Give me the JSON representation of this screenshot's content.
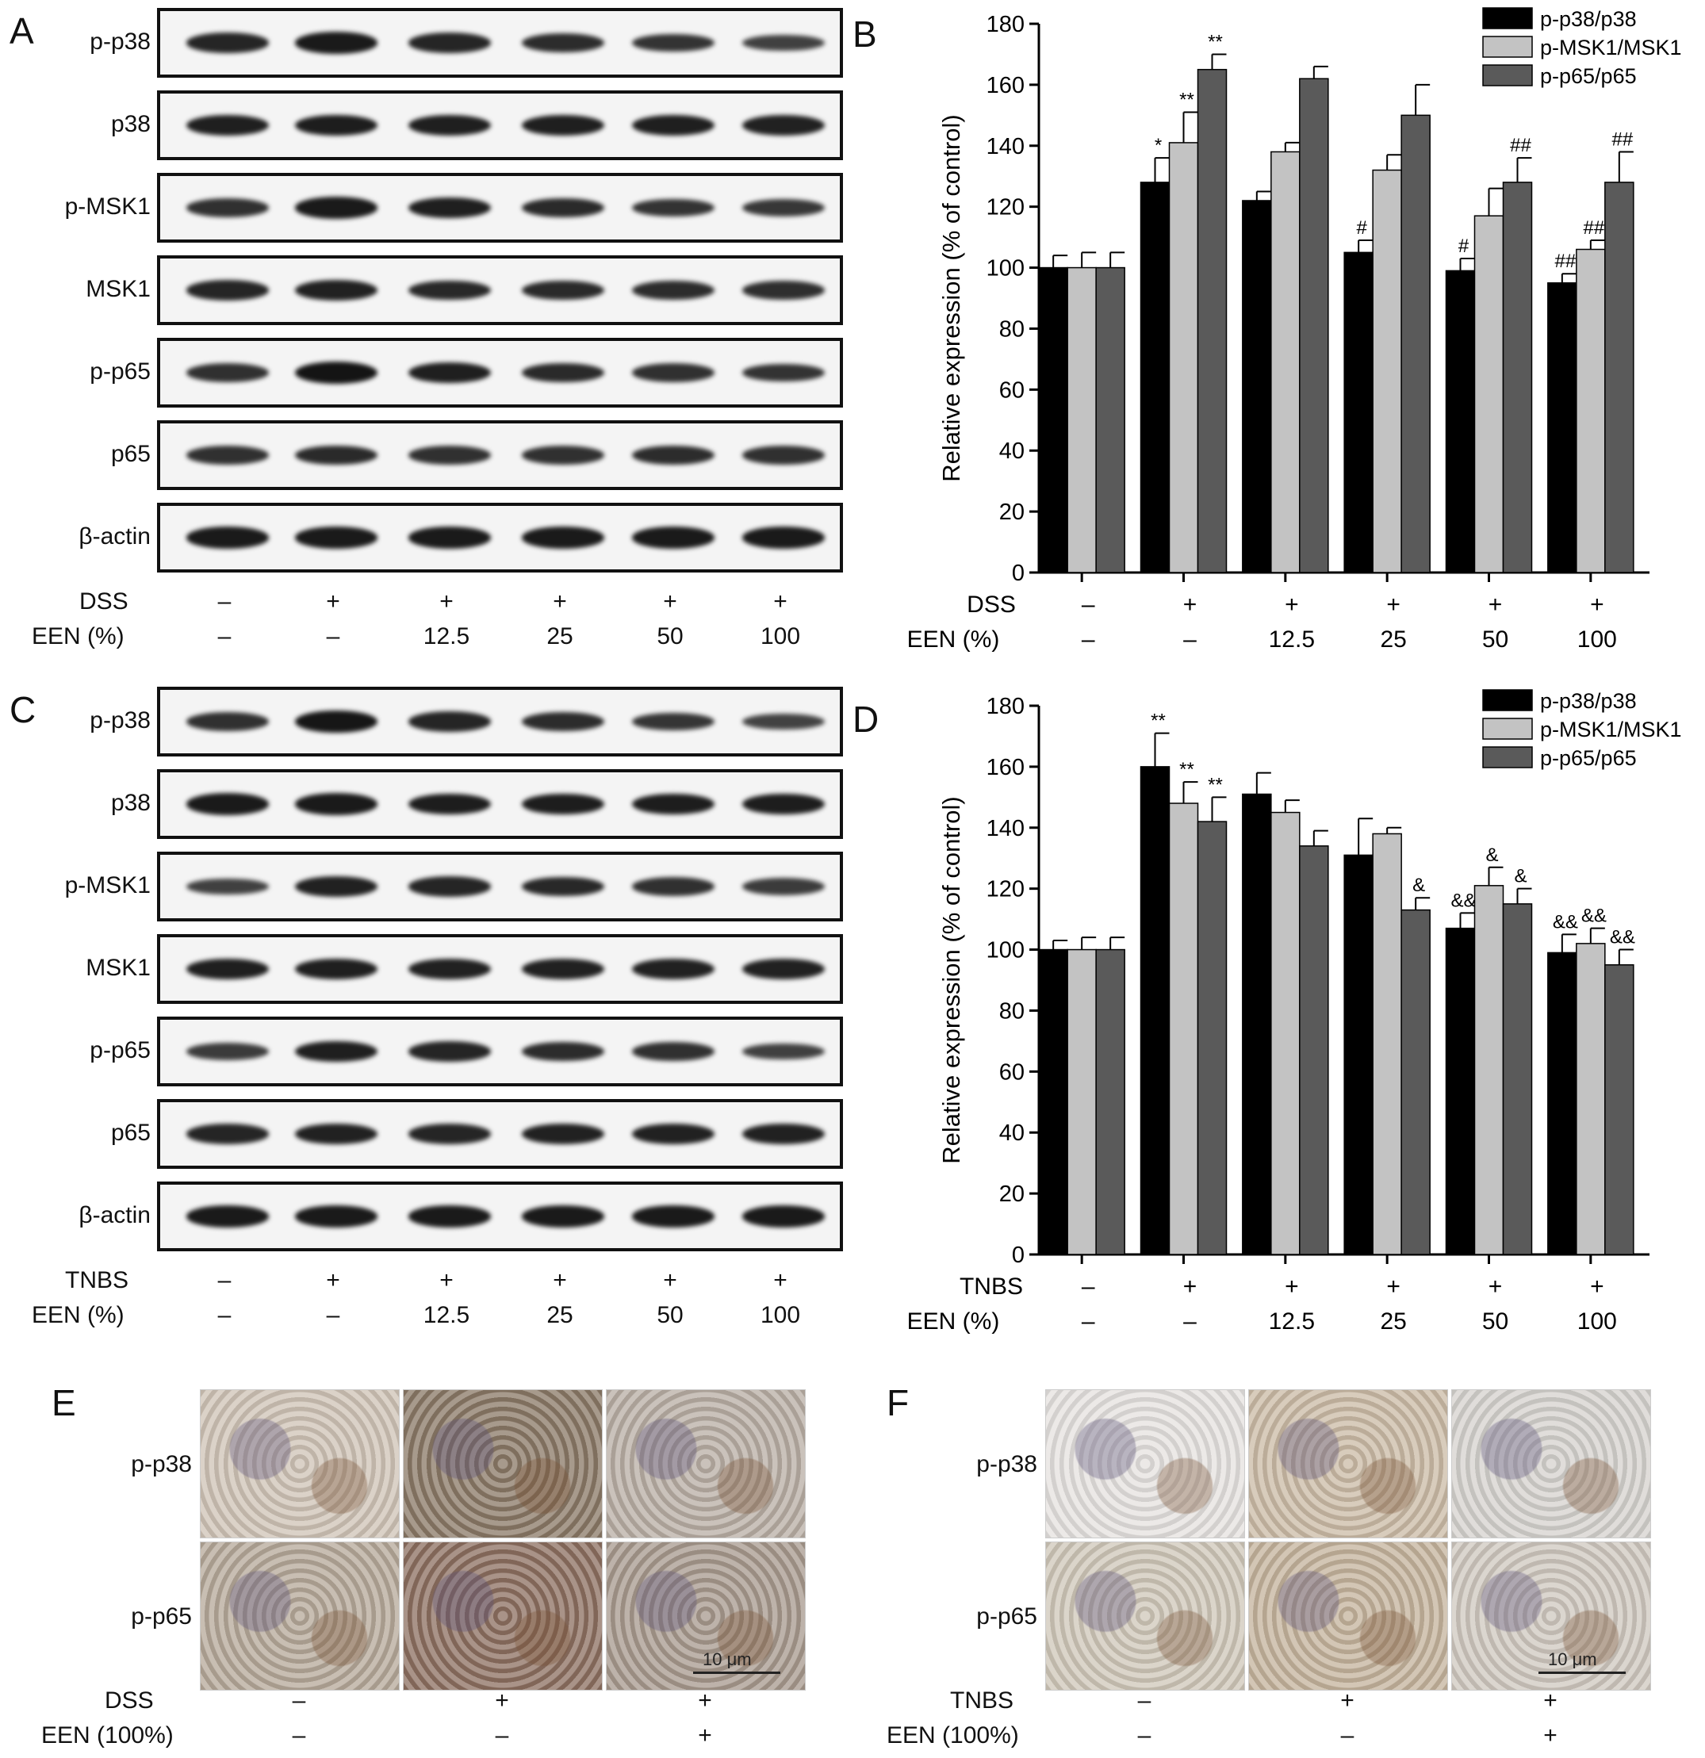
{
  "panels": {
    "A": "A",
    "B": "B",
    "C": "C",
    "D": "D",
    "E": "E",
    "F": "F"
  },
  "blot_labels": [
    "p-p38",
    "p38",
    "p-MSK1",
    "MSK1",
    "p-p65",
    "p65",
    "β-actin"
  ],
  "blot_A_intensity": [
    [
      0.85,
      0.95,
      0.85,
      0.78,
      0.72,
      0.6
    ],
    [
      0.9,
      0.92,
      0.9,
      0.9,
      0.9,
      0.88
    ],
    [
      0.75,
      0.95,
      0.9,
      0.8,
      0.72,
      0.68
    ],
    [
      0.85,
      0.88,
      0.82,
      0.8,
      0.78,
      0.76
    ],
    [
      0.75,
      1.0,
      0.9,
      0.8,
      0.75,
      0.72
    ],
    [
      0.75,
      0.8,
      0.75,
      0.75,
      0.78,
      0.75
    ],
    [
      0.95,
      0.95,
      0.95,
      0.95,
      0.95,
      0.95
    ]
  ],
  "blot_C_intensity": [
    [
      0.75,
      0.98,
      0.85,
      0.78,
      0.7,
      0.58
    ],
    [
      0.95,
      0.95,
      0.92,
      0.92,
      0.92,
      0.92
    ],
    [
      0.6,
      0.88,
      0.85,
      0.82,
      0.75,
      0.65
    ],
    [
      0.9,
      0.9,
      0.88,
      0.88,
      0.88,
      0.88
    ],
    [
      0.65,
      0.9,
      0.85,
      0.78,
      0.75,
      0.6
    ],
    [
      0.85,
      0.88,
      0.85,
      0.88,
      0.88,
      0.88
    ],
    [
      0.95,
      0.95,
      0.95,
      0.95,
      0.95,
      0.95
    ]
  ],
  "conditions_AB": {
    "row1_label": "DSS",
    "row1": [
      "–",
      "+",
      "+",
      "+",
      "+",
      "+"
    ],
    "row2_label": "EEN (%)",
    "row2": [
      "–",
      "–",
      "12.5",
      "25",
      "50",
      "100"
    ]
  },
  "conditions_CD": {
    "row1_label": "TNBS",
    "row1": [
      "–",
      "+",
      "+",
      "+",
      "+",
      "+"
    ],
    "row2_label": "EEN (%)",
    "row2": [
      "–",
      "–",
      "12.5",
      "25",
      "50",
      "100"
    ]
  },
  "chart_data": [
    {
      "type": "bar",
      "panel": "B",
      "ylabel": "Relative expression (% of control)",
      "ylim": [
        0,
        180
      ],
      "yticks": [
        0,
        20,
        40,
        60,
        80,
        100,
        120,
        140,
        160,
        180
      ],
      "legend": "top-right",
      "series": [
        {
          "name": "p-p38/p38",
          "color": "#000000",
          "values": [
            100,
            128,
            122,
            105,
            99,
            95
          ],
          "errors": [
            4,
            8,
            3,
            4,
            4,
            3
          ],
          "annotations": [
            "",
            "*",
            "",
            "#",
            "#",
            "##"
          ]
        },
        {
          "name": "p-MSK1/MSK1",
          "color": "#c3c3c3",
          "values": [
            100,
            141,
            138,
            132,
            117,
            106
          ],
          "errors": [
            5,
            10,
            3,
            5,
            9,
            3
          ],
          "annotations": [
            "",
            "**",
            "",
            "",
            "",
            "##"
          ]
        },
        {
          "name": "p-p65/p65",
          "color": "#5a5a5a",
          "values": [
            100,
            165,
            162,
            150,
            128,
            128
          ],
          "errors": [
            5,
            5,
            4,
            10,
            8,
            10
          ],
          "annotations": [
            "",
            "**",
            "",
            "",
            "##",
            "##"
          ]
        }
      ]
    },
    {
      "type": "bar",
      "panel": "D",
      "ylabel": "Relative expression (% of control)",
      "ylim": [
        0,
        180
      ],
      "yticks": [
        0,
        20,
        40,
        60,
        80,
        100,
        120,
        140,
        160,
        180
      ],
      "legend": "top-right",
      "series": [
        {
          "name": "p-p38/p38",
          "color": "#000000",
          "values": [
            100,
            160,
            151,
            131,
            107,
            99
          ],
          "errors": [
            3,
            11,
            7,
            12,
            5,
            6
          ],
          "annotations": [
            "",
            "**",
            "",
            "",
            "&&",
            "&&"
          ]
        },
        {
          "name": "p-MSK1/MSK1",
          "color": "#c3c3c3",
          "values": [
            100,
            148,
            145,
            138,
            121,
            102
          ],
          "errors": [
            4,
            7,
            4,
            2,
            6,
            5
          ],
          "annotations": [
            "",
            "**",
            "",
            "",
            "&",
            "&&"
          ]
        },
        {
          "name": "p-p65/p65",
          "color": "#5a5a5a",
          "values": [
            100,
            142,
            134,
            113,
            115,
            95
          ],
          "errors": [
            4,
            8,
            5,
            4,
            5,
            5
          ],
          "annotations": [
            "",
            "**",
            "",
            "&",
            "&",
            "&&"
          ]
        }
      ]
    }
  ],
  "ihc_E": {
    "row_labels": [
      "p-p38",
      "p-p65"
    ],
    "scale": "10 μm",
    "cond_row1_label": "DSS",
    "cond_row1": [
      "–",
      "+",
      "+"
    ],
    "cond_row2_label": "EEN (100%)",
    "cond_row2": [
      "–",
      "–",
      "+"
    ],
    "tile_colors": [
      [
        "#cfc3b6",
        "#8a7866",
        "#b8aea4"
      ],
      [
        "#b5a899",
        "#8c6f60",
        "#a7998d"
      ]
    ]
  },
  "ihc_F": {
    "row_labels": [
      "p-p38",
      "p-p65"
    ],
    "scale": "10 μm",
    "cond_row1_label": "TNBS",
    "cond_row1": [
      "–",
      "+",
      "+"
    ],
    "cond_row2_label": "EEN (100%)",
    "cond_row2": [
      "–",
      "–",
      "+"
    ],
    "tile_colors": [
      [
        "#e5e2df",
        "#cbbba6",
        "#d5d2ce"
      ],
      [
        "#cfc7b9",
        "#c4b39c",
        "#cfc8bf"
      ]
    ]
  }
}
